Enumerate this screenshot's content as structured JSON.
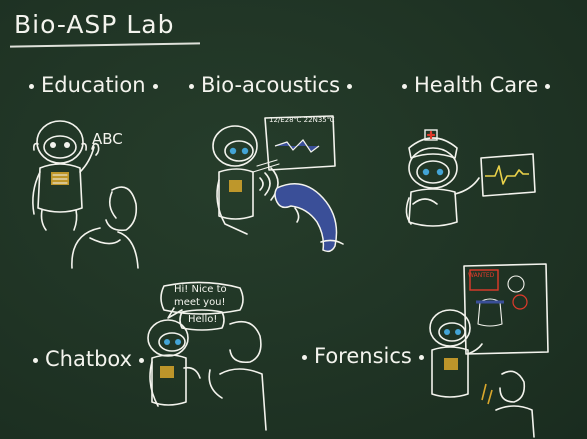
{
  "title": "Bio-ASP Lab",
  "sections": {
    "education": "Education",
    "bioacoustics": "Bio-acoustics",
    "healthcare": "Health Care",
    "chatbox": "Chatbox",
    "forensics": "Forensics"
  },
  "education_text": "ABC",
  "bioacoustics_screen": "12/E28℃ 22N35℃",
  "chat_bubbles": {
    "left": "Hi! Nice to meet you!",
    "right": "Hello!"
  },
  "forensics_label": "WANTED",
  "colors": {
    "board": "#1f3324",
    "chalk": "#f4f4ee",
    "dolphin": "#3a4f98",
    "robot_eye": "#43a4d6",
    "red_cross": "#e03a2b",
    "ecg": "#e9d14a"
  }
}
